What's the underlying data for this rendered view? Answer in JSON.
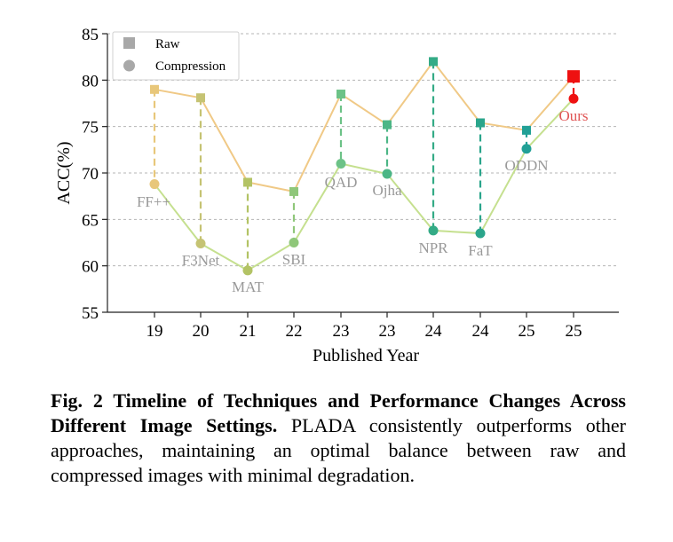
{
  "chart_data": {
    "type": "line",
    "categories": [
      "19",
      "20",
      "21",
      "22",
      "23",
      "23",
      "24",
      "24",
      "25",
      "25"
    ],
    "methods": [
      "FF++",
      "F3Net",
      "MAT",
      "SBI",
      "QAD",
      "Ojha",
      "NPR",
      "FaT",
      "ODDN",
      "Ours"
    ],
    "series": [
      {
        "name": "Raw",
        "marker": "square",
        "line_color": "#f0c986",
        "values": [
          79.0,
          78.1,
          69.0,
          68.0,
          78.5,
          75.2,
          82.0,
          75.4,
          74.6,
          80.4
        ]
      },
      {
        "name": "Compression",
        "marker": "circle",
        "line_color": "#c5e08f",
        "values": [
          68.8,
          62.4,
          59.5,
          62.5,
          71.0,
          69.9,
          63.8,
          63.5,
          72.6,
          78.0
        ]
      }
    ],
    "point_colors": [
      "#e8c77a",
      "#c5c373",
      "#b3c365",
      "#8fc77a",
      "#6cc287",
      "#4cb686",
      "#34ab86",
      "#2aa58b",
      "#21a096",
      "#ee1111"
    ],
    "ylim": [
      55,
      85
    ],
    "yticks": [
      55,
      60,
      65,
      70,
      75,
      80,
      85
    ],
    "xlabel": "Published Year",
    "ylabel": "ACC(%)",
    "legend_position": "top-left",
    "grid": "horizontal-dashed"
  },
  "caption": {
    "bold": "Fig. 2 Timeline of Techniques and Performance Changes Across Different Image Settings.",
    "text": " PLADA consistently outperforms other approaches, maintaining an optimal balance between raw and compressed images with minimal degradation."
  }
}
